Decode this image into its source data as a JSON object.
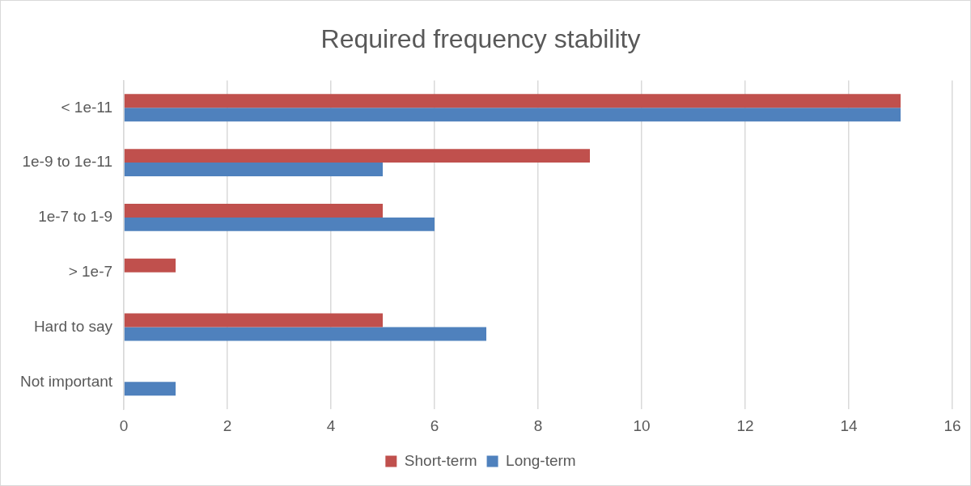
{
  "chart_data": {
    "type": "bar",
    "orientation": "horizontal",
    "title": "Required frequency stability",
    "categories": [
      "< 1e-11",
      "1e-9 to 1e-11",
      "1e-7 to 1-9",
      "> 1e-7",
      "Hard to say",
      "Not important"
    ],
    "series": [
      {
        "name": "Short-term",
        "color": "#c0504d",
        "values": [
          15,
          9,
          5,
          1,
          5,
          0
        ]
      },
      {
        "name": "Long-term",
        "color": "#4f81bd",
        "values": [
          15,
          5,
          6,
          0,
          7,
          1
        ]
      }
    ],
    "xlim": [
      0,
      16
    ],
    "xticks": [
      0,
      2,
      4,
      6,
      8,
      10,
      12,
      14,
      16
    ],
    "grid": "x",
    "legend": "bottom"
  }
}
